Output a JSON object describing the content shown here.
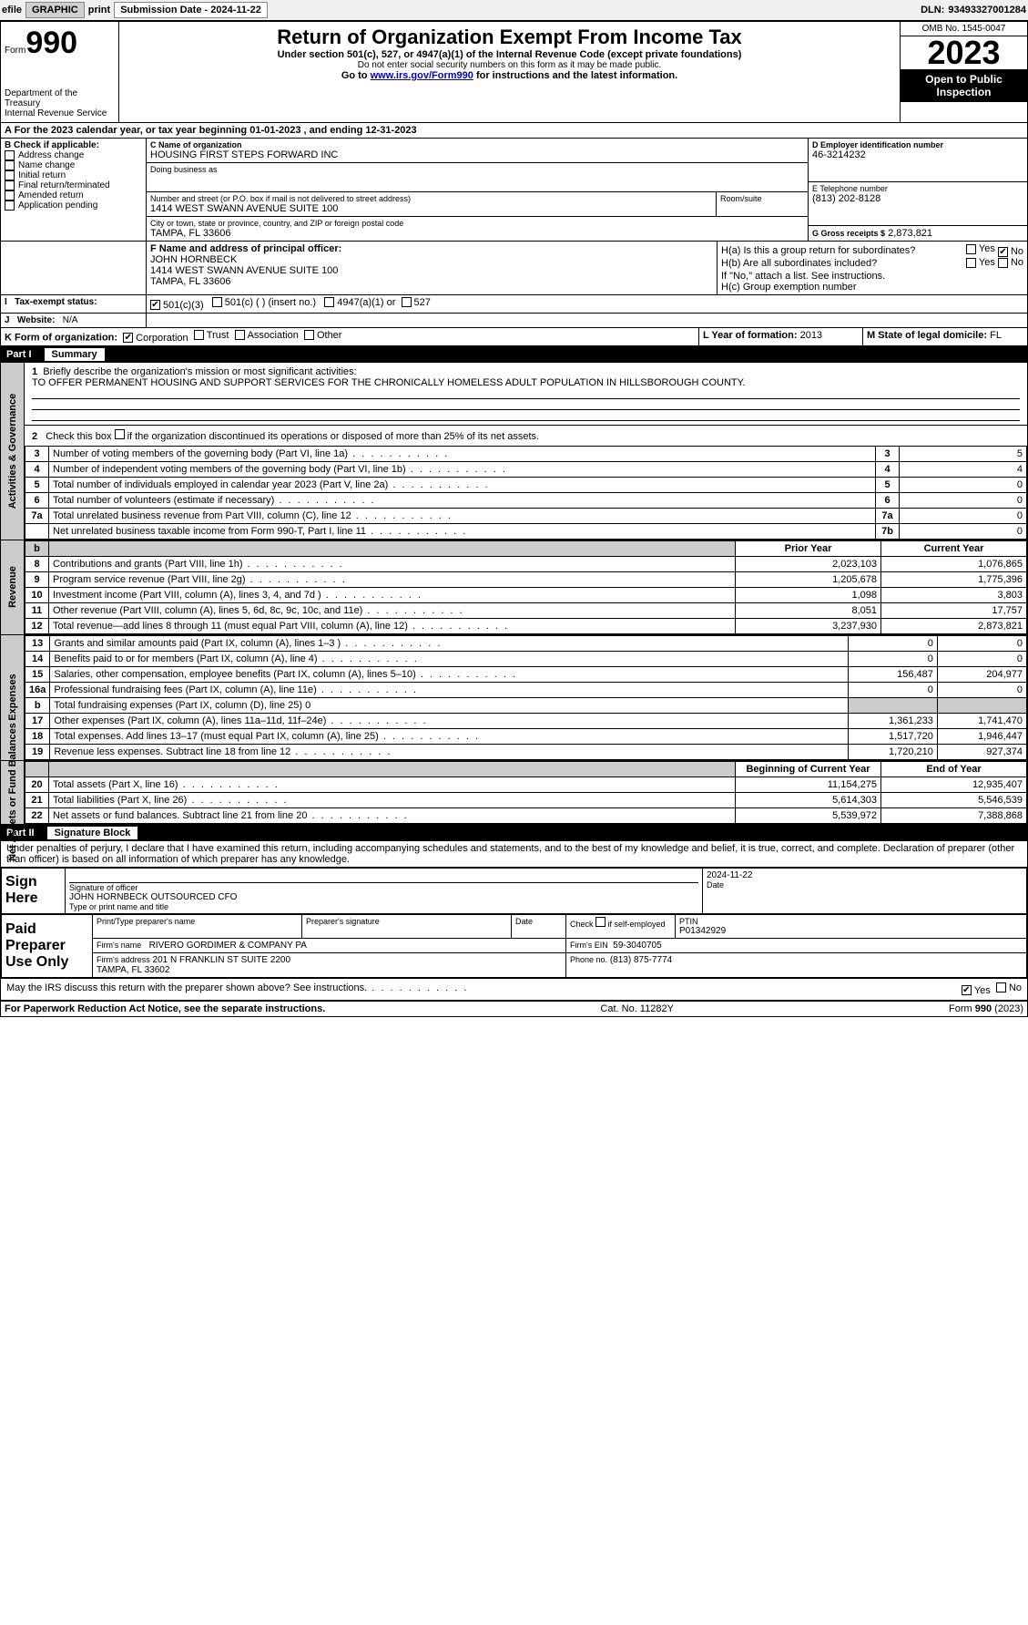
{
  "topbar": {
    "efile": "efile",
    "graphic": "GRAPHIC",
    "print": "print",
    "sub_label": "Submission Date",
    "sub_date": "2024-11-22",
    "dln_label": "DLN:",
    "dln": "93493327001284"
  },
  "header": {
    "form_word": "Form",
    "form_no": "990",
    "title": "Return of Organization Exempt From Income Tax",
    "sub": "Under section 501(c), 527, or 4947(a)(1) of the Internal Revenue Code (except private foundations)",
    "sub2": "Do not enter social security numbers on this form as it may be made public.",
    "sub3_pre": "Go to ",
    "sub3_link": "www.irs.gov/Form990",
    "sub3_post": " for instructions and the latest information.",
    "dept": "Department of the Treasury",
    "irs": "Internal Revenue Service",
    "omb": "OMB No. 1545-0047",
    "year": "2023",
    "open": "Open to Public Inspection"
  },
  "A": {
    "line": "A For the 2023 calendar year, or tax year beginning ",
    "begin": "01-01-2023",
    "mid": " , and ending ",
    "end": "12-31-2023"
  },
  "B": {
    "label": "B Check if applicable:",
    "opts": [
      "Address change",
      "Name change",
      "Initial return",
      "Final return/terminated",
      "Amended return",
      "Application pending"
    ]
  },
  "C": {
    "name_lbl": "C Name of organization",
    "name": "HOUSING FIRST STEPS FORWARD INC",
    "dba_lbl": "Doing business as",
    "street_lbl": "Number and street (or P.O. box if mail is not delivered to street address)",
    "street": "1414 WEST SWANN AVENUE SUITE 100",
    "suite_lbl": "Room/suite",
    "city_lbl": "City or town, state or province, country, and ZIP or foreign postal code",
    "city": "TAMPA, FL  33606"
  },
  "D": {
    "lbl": "D Employer identification number",
    "val": "46-3214232"
  },
  "E": {
    "lbl": "E Telephone number",
    "val": "(813) 202-8128"
  },
  "G": {
    "lbl": "G Gross receipts $",
    "val": "2,873,821"
  },
  "F": {
    "lbl": "F  Name and address of principal officer:",
    "name": "JOHN HORNBECK",
    "addr1": "1414 WEST SWANN AVENUE SUITE 100",
    "addr2": "TAMPA, FL  33606"
  },
  "H": {
    "a": "H(a)  Is this a group return for subordinates?",
    "b": "H(b)  Are all subordinates included?",
    "b2": "If \"No,\" attach a list. See instructions.",
    "c": "H(c)  Group exemption number ",
    "yes": "Yes",
    "no": "No"
  },
  "I": {
    "lbl": "Tax-exempt status:",
    "o1": "501(c)(3)",
    "o2": "501(c) (  ) (insert no.)",
    "o3": "4947(a)(1) or",
    "o4": "527"
  },
  "J": {
    "lbl": "Website:",
    "val": "N/A"
  },
  "K": {
    "lbl": "K Form of organization:",
    "o1": "Corporation",
    "o2": "Trust",
    "o3": "Association",
    "o4": "Other"
  },
  "L": {
    "lbl": "L Year of formation:",
    "val": "2013"
  },
  "M": {
    "lbl": "M State of legal domicile:",
    "val": "FL"
  },
  "part1": {
    "label": "Part I",
    "title": "Summary",
    "q1_lbl": "1",
    "q1": "Briefly describe the organization's mission or most significant activities:",
    "q1_val": "TO OFFER PERMANENT HOUSING AND SUPPORT SERVICES FOR THE CHRONICALLY HOMELESS ADULT POPULATION IN HILLSBOROUGH COUNTY.",
    "q2_lbl": "2",
    "q2": "Check this box      if the organization discontinued its operations or disposed of more than 25% of its net assets."
  },
  "tabs": {
    "gov": "Activities & Governance",
    "rev": "Revenue",
    "exp": "Expenses",
    "net": "Net Assets or Fund Balances"
  },
  "gov_lines": [
    {
      "n": "3",
      "t": "Number of voting members of the governing body (Part VI, line 1a)",
      "k": "3",
      "v": "5"
    },
    {
      "n": "4",
      "t": "Number of independent voting members of the governing body (Part VI, line 1b)",
      "k": "4",
      "v": "4"
    },
    {
      "n": "5",
      "t": "Total number of individuals employed in calendar year 2023 (Part V, line 2a)",
      "k": "5",
      "v": "0"
    },
    {
      "n": "6",
      "t": "Total number of volunteers (estimate if necessary)",
      "k": "6",
      "v": "0"
    },
    {
      "n": "7a",
      "t": "Total unrelated business revenue from Part VIII, column (C), line 12",
      "k": "7a",
      "v": "0"
    },
    {
      "n": "",
      "t": "Net unrelated business taxable income from Form 990-T, Part I, line 11",
      "k": "7b",
      "v": "0"
    }
  ],
  "col_headers": {
    "prior": "Prior Year",
    "current": "Current Year",
    "boy": "Beginning of Current Year",
    "eoy": "End of Year"
  },
  "rev_lines": [
    {
      "n": "8",
      "t": "Contributions and grants (Part VIII, line 1h)",
      "p": "2,023,103",
      "c": "1,076,865"
    },
    {
      "n": "9",
      "t": "Program service revenue (Part VIII, line 2g)",
      "p": "1,205,678",
      "c": "1,775,396"
    },
    {
      "n": "10",
      "t": "Investment income (Part VIII, column (A), lines 3, 4, and 7d )",
      "p": "1,098",
      "c": "3,803"
    },
    {
      "n": "11",
      "t": "Other revenue (Part VIII, column (A), lines 5, 6d, 8c, 9c, 10c, and 11e)",
      "p": "8,051",
      "c": "17,757"
    },
    {
      "n": "12",
      "t": "Total revenue—add lines 8 through 11 (must equal Part VIII, column (A), line 12)",
      "p": "3,237,930",
      "c": "2,873,821"
    }
  ],
  "exp_lines": [
    {
      "n": "13",
      "t": "Grants and similar amounts paid (Part IX, column (A), lines 1–3 )",
      "p": "0",
      "c": "0"
    },
    {
      "n": "14",
      "t": "Benefits paid to or for members (Part IX, column (A), line 4)",
      "p": "0",
      "c": "0"
    },
    {
      "n": "15",
      "t": "Salaries, other compensation, employee benefits (Part IX, column (A), lines 5–10)",
      "p": "156,487",
      "c": "204,977"
    },
    {
      "n": "16a",
      "t": "Professional fundraising fees (Part IX, column (A), line 11e)",
      "p": "0",
      "c": "0"
    },
    {
      "n": "b",
      "t": "Total fundraising expenses (Part IX, column (D), line 25) 0",
      "p": "",
      "c": "",
      "gray": true
    },
    {
      "n": "17",
      "t": "Other expenses (Part IX, column (A), lines 11a–11d, 11f–24e)",
      "p": "1,361,233",
      "c": "1,741,470"
    },
    {
      "n": "18",
      "t": "Total expenses. Add lines 13–17 (must equal Part IX, column (A), line 25)",
      "p": "1,517,720",
      "c": "1,946,447"
    },
    {
      "n": "19",
      "t": "Revenue less expenses. Subtract line 18 from line 12",
      "p": "1,720,210",
      "c": "927,374"
    }
  ],
  "net_lines": [
    {
      "n": "20",
      "t": "Total assets (Part X, line 16)",
      "p": "11,154,275",
      "c": "12,935,407"
    },
    {
      "n": "21",
      "t": "Total liabilities (Part X, line 26)",
      "p": "5,614,303",
      "c": "5,546,539"
    },
    {
      "n": "22",
      "t": "Net assets or fund balances. Subtract line 21 from line 20",
      "p": "5,539,972",
      "c": "7,388,868"
    }
  ],
  "part2": {
    "label": "Part II",
    "title": "Signature Block",
    "decl": "Under penalties of perjury, I declare that I have examined this return, including accompanying schedules and statements, and to the best of my knowledge and belief, it is true, correct, and complete. Declaration of preparer (other than officer) is based on all information of which preparer has any knowledge."
  },
  "sign": {
    "here": "Sign Here",
    "sig_officer": "Signature of officer",
    "officer_name": "JOHN HORNBECK  OUTSOURCED CFO",
    "type_name": "Type or print name and title",
    "date_lbl": "Date",
    "date": "2024-11-22"
  },
  "paid": {
    "label": "Paid Preparer Use Only",
    "print_name_lbl": "Print/Type preparer's name",
    "sig_lbl": "Preparer's signature",
    "date_lbl": "Date",
    "check_lbl": "Check        if self-employed",
    "ptin_lbl": "PTIN",
    "ptin": "P01342929",
    "firm_name_lbl": "Firm's name",
    "firm_name": "RIVERO GORDIMER & COMPANY PA",
    "firm_ein_lbl": "Firm's EIN",
    "firm_ein": "59-3040705",
    "firm_addr_lbl": "Firm's address",
    "firm_addr": "201 N FRANKLIN ST SUITE 2200",
    "firm_city": "TAMPA, FL  33602",
    "phone_lbl": "Phone no.",
    "phone": "(813) 875-7774"
  },
  "discuss": {
    "q": "May the IRS discuss this return with the preparer shown above? See instructions.",
    "yes": "Yes",
    "no": "No"
  },
  "footer": {
    "left": "For Paperwork Reduction Act Notice, see the separate instructions.",
    "mid": "Cat. No. 11282Y",
    "right": "Form 990 (2023)"
  }
}
